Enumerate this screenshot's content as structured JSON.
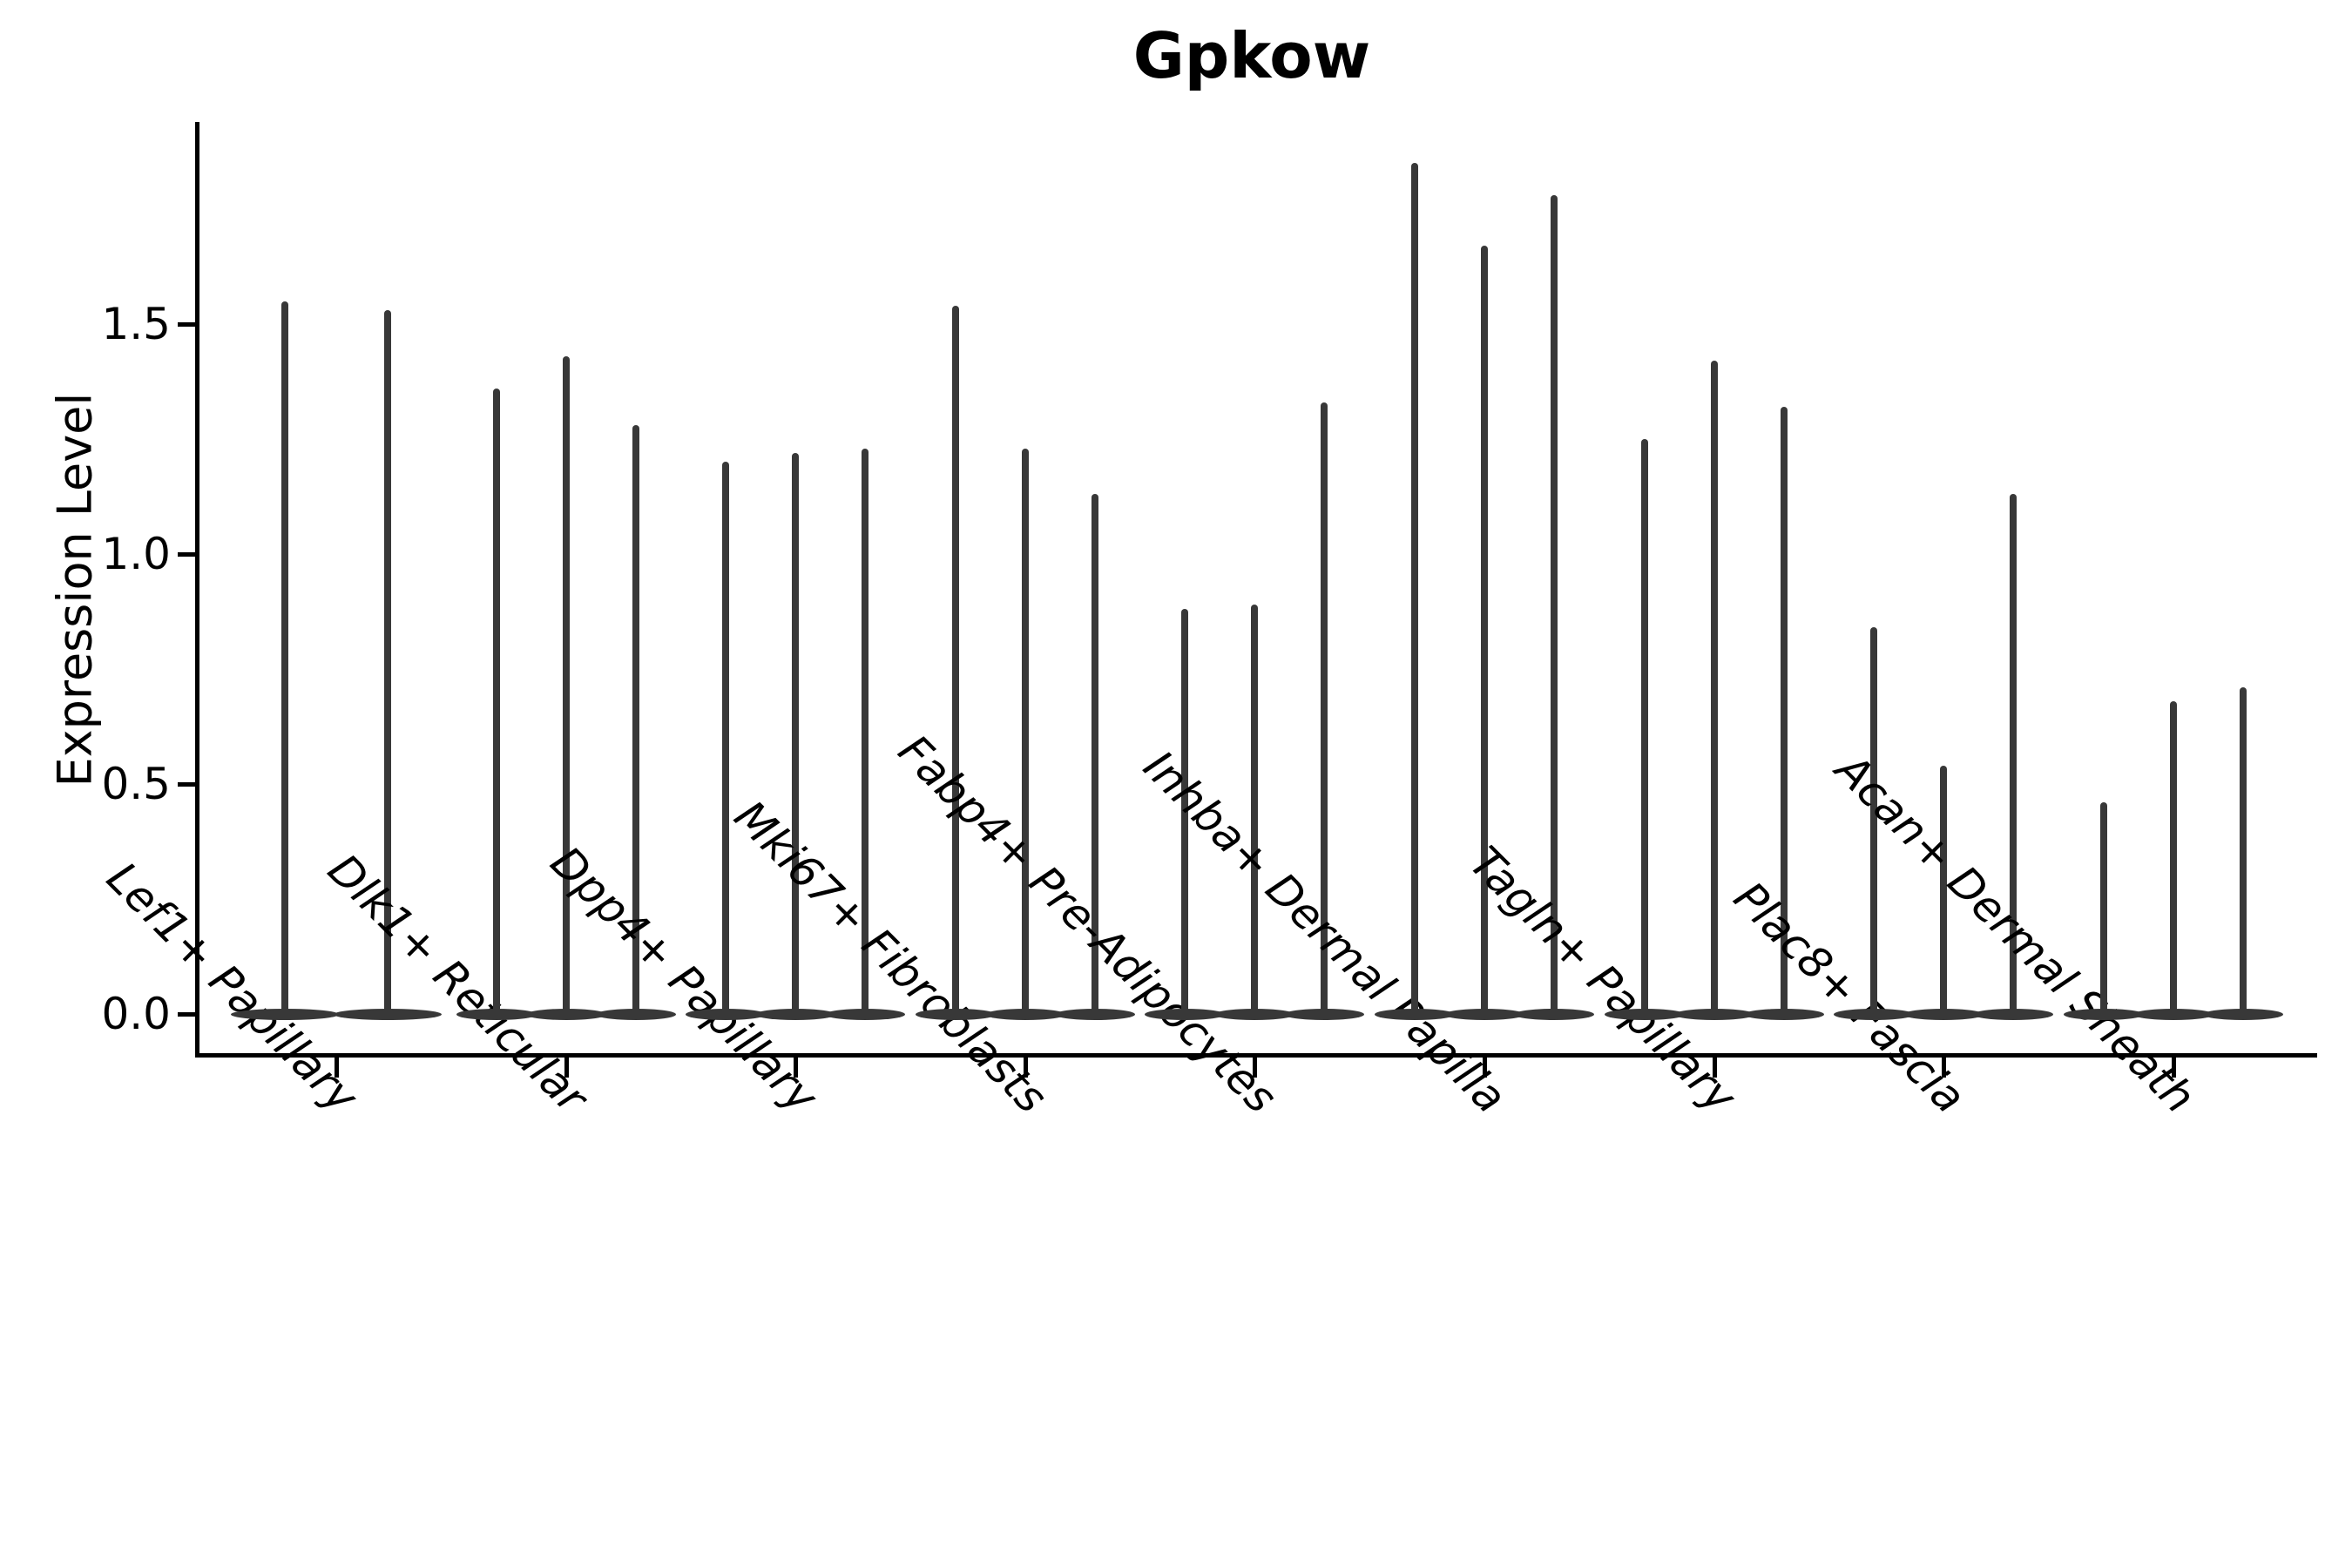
{
  "title": "Gpkow",
  "chart_data": {
    "type": "violin",
    "title": "Gpkow",
    "ylabel": "Expression Level",
    "xlabel": "",
    "yticks": [
      0.0,
      0.5,
      1.0,
      1.5
    ],
    "ytick_labels": [
      "0.0",
      "0.5",
      "1.0",
      "1.5"
    ],
    "ylim": [
      -0.09,
      1.94
    ],
    "grid": false,
    "legend": null,
    "background": "#ffffff",
    "violin_color": "#383838",
    "axis_color": "#000000",
    "categories": [
      "Lef1+ Papillary",
      "Dlk1+ Reticular",
      "Dpp4+ Papillary",
      "Mki67+ Fibroblasts",
      "Fabp4+ Pre-Adipocytes",
      "Inhba+ Dermal Papilla",
      "Tagln+ Papillary",
      "Plac8+ Fascia",
      "Acan+ Dermal Sheath"
    ],
    "series": [
      {
        "category": "Lef1+ Papillary",
        "violin_maxima": [
          1.55,
          1.53
        ]
      },
      {
        "category": "Dlk1+ Reticular",
        "violin_maxima": [
          1.36,
          1.43,
          1.28
        ]
      },
      {
        "category": "Dpp4+ Papillary",
        "violin_maxima": [
          1.2,
          1.22,
          1.23
        ]
      },
      {
        "category": "Mki67+ Fibroblasts",
        "violin_maxima": [
          1.54,
          1.23,
          1.13
        ]
      },
      {
        "category": "Fabp4+ Pre-Adipocytes",
        "violin_maxima": [
          0.88,
          0.89,
          1.33
        ]
      },
      {
        "category": "Inhba+ Dermal Papilla",
        "violin_maxima": [
          1.85,
          1.67,
          1.78
        ]
      },
      {
        "category": "Tagln+ Papillary",
        "violin_maxima": [
          1.25,
          1.42,
          1.32
        ]
      },
      {
        "category": "Plac8+ Fascia",
        "violin_maxima": [
          0.84,
          0.54,
          1.13
        ]
      },
      {
        "category": "Acan+ Dermal Sheath",
        "violin_maxima": [
          0.46,
          0.68,
          0.71
        ]
      }
    ]
  }
}
